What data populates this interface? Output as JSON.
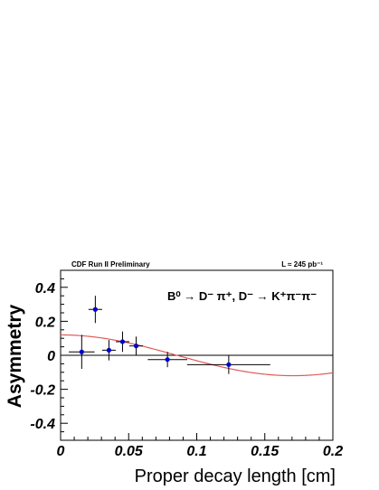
{
  "header": {
    "left": "CDF Run II Preliminary",
    "right": "L ≈ 245 pb⁻¹"
  },
  "annotation": "B⁰ → D⁻ π⁺, D⁻ → K⁺π⁻π⁻",
  "chart_data": {
    "type": "scatter",
    "title": "",
    "xlabel": "Proper decay length [cm]",
    "ylabel": "Asymmetry",
    "xlim": [
      0,
      0.2
    ],
    "ylim": [
      -0.5,
      0.5
    ],
    "xticks": [
      "0",
      "0.05",
      "0.1",
      "0.15",
      "0.2"
    ],
    "yticks": [
      "0.4",
      "0.2",
      "0",
      "-0.2",
      "-0.4"
    ],
    "xtick_values": [
      0,
      0.05,
      0.1,
      0.15,
      0.2
    ],
    "ytick_values": [
      0.4,
      0.2,
      0,
      -0.2,
      -0.4
    ],
    "series": [
      {
        "points": [
          {
            "x": 0.0155,
            "y": 0.02,
            "xerr": 0.0095,
            "yerr": 0.1
          },
          {
            "x": 0.0255,
            "y": 0.27,
            "xerr": 0.005,
            "yerr": 0.08
          },
          {
            "x": 0.0355,
            "y": 0.03,
            "xerr": 0.005,
            "yerr": 0.06
          },
          {
            "x": 0.0455,
            "y": 0.08,
            "xerr": 0.005,
            "yerr": 0.06
          },
          {
            "x": 0.0555,
            "y": 0.055,
            "xerr": 0.005,
            "yerr": 0.055
          },
          {
            "x": 0.0785,
            "y": -0.025,
            "xerr": 0.0145,
            "yerr": 0.045
          },
          {
            "x": 0.1235,
            "y": -0.055,
            "xerr": 0.0305,
            "yerr": 0.055
          }
        ],
        "color": "#0000cc"
      }
    ],
    "fit": {
      "form": "A*cos(w*x)",
      "amplitude": 0.12,
      "omega": 18.4,
      "color": "#e05a5a"
    },
    "zero_line": true,
    "grid": false,
    "legend": "none"
  }
}
